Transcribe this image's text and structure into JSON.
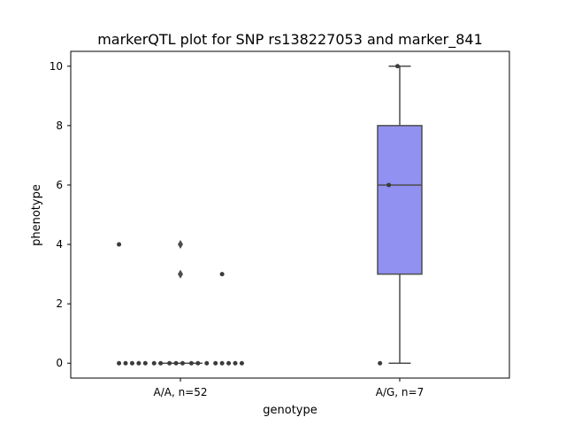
{
  "chart_data": {
    "type": "box",
    "title": "markerQTL plot for SNP rs138227053 and marker_841",
    "xlabel": "genotype",
    "ylabel": "phenotype",
    "categories": [
      "A/A, n=52",
      "A/G, n=7"
    ],
    "ylim": [
      -0.5,
      10.5
    ],
    "yticks": [
      0,
      2,
      4,
      6,
      8,
      10
    ],
    "grid": false,
    "colors": {
      "box_fill": "#9191f2",
      "box_edge": "#4d4d4d",
      "points": "#3b3b3b",
      "axis": "#000000"
    },
    "boxes": [
      {
        "category": "A/A, n=52",
        "q1": 0,
        "median": 0,
        "q3": 0,
        "whisker_low": 0,
        "whisker_high": 0,
        "outliers": [
          4,
          3
        ]
      },
      {
        "category": "A/G, n=7",
        "q1": 3,
        "median": 6,
        "q3": 8,
        "whisker_low": 0,
        "whisker_high": 10,
        "outliers": []
      }
    ],
    "strip_points": [
      {
        "category": "A/A, n=52",
        "y": 4,
        "jitter": -0.28
      },
      {
        "category": "A/A, n=52",
        "y": 3,
        "jitter": 0.19
      },
      {
        "category": "A/A, n=52",
        "y": 0,
        "jitter": -0.28
      },
      {
        "category": "A/A, n=52",
        "y": 0,
        "jitter": -0.25
      },
      {
        "category": "A/A, n=52",
        "y": 0,
        "jitter": -0.22
      },
      {
        "category": "A/A, n=52",
        "y": 0,
        "jitter": -0.19
      },
      {
        "category": "A/A, n=52",
        "y": 0,
        "jitter": -0.16
      },
      {
        "category": "A/A, n=52",
        "y": 0,
        "jitter": -0.12
      },
      {
        "category": "A/A, n=52",
        "y": 0,
        "jitter": -0.09
      },
      {
        "category": "A/A, n=52",
        "y": 0,
        "jitter": -0.05
      },
      {
        "category": "A/A, n=52",
        "y": 0,
        "jitter": -0.02
      },
      {
        "category": "A/A, n=52",
        "y": 0,
        "jitter": 0.01
      },
      {
        "category": "A/A, n=52",
        "y": 0,
        "jitter": 0.05
      },
      {
        "category": "A/A, n=52",
        "y": 0,
        "jitter": 0.08
      },
      {
        "category": "A/A, n=52",
        "y": 0,
        "jitter": 0.12
      },
      {
        "category": "A/A, n=52",
        "y": 0,
        "jitter": 0.16
      },
      {
        "category": "A/A, n=52",
        "y": 0,
        "jitter": 0.19
      },
      {
        "category": "A/A, n=52",
        "y": 0,
        "jitter": 0.22
      },
      {
        "category": "A/A, n=52",
        "y": 0,
        "jitter": 0.25
      },
      {
        "category": "A/A, n=52",
        "y": 0,
        "jitter": 0.28
      },
      {
        "category": "A/G, n=7",
        "y": 10,
        "jitter": -0.01
      },
      {
        "category": "A/G, n=7",
        "y": 6,
        "jitter": -0.05
      },
      {
        "category": "A/G, n=7",
        "y": 0,
        "jitter": -0.09
      }
    ]
  }
}
